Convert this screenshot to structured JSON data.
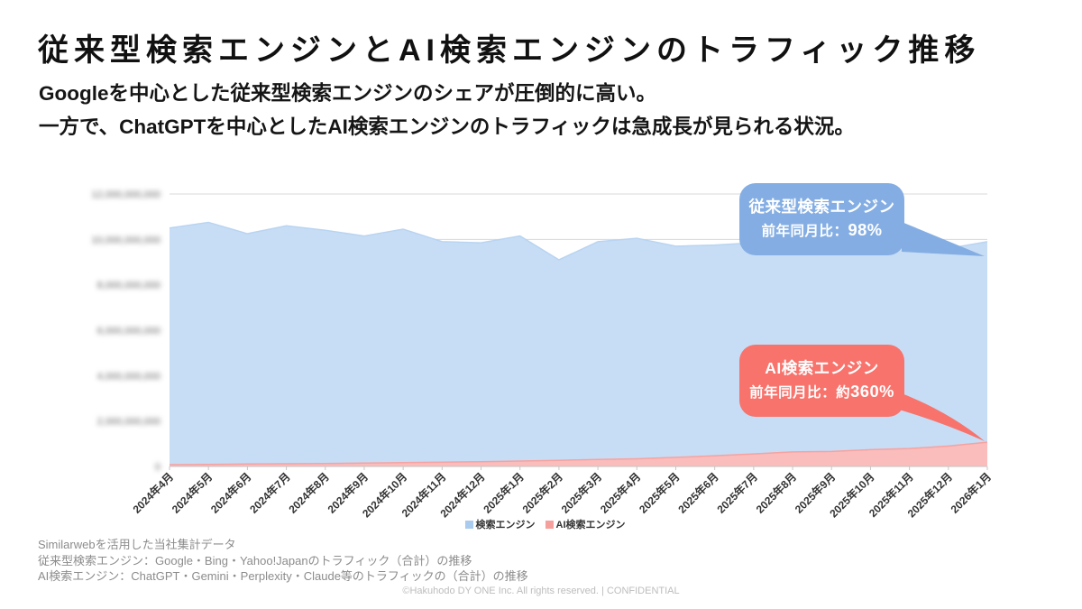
{
  "title": "従来型検索エンジンとAI検索エンジンのトラフィック推移",
  "subtitle": {
    "line1": "Googleを中心とした従来型検索エンジンのシェアが圧倒的に高い。",
    "line2": "一方で、ChatGPTを中心としたAI検索エンジンのトラフィックは急成長が見られる状況。"
  },
  "callouts": {
    "traditional": {
      "line1": "従来型検索エンジン",
      "line2": "前年同月比：98%",
      "color": "#84AEE3"
    },
    "ai": {
      "line1": "AI検索エンジン",
      "line2": "前年同月比：約360%",
      "color": "#F7736C"
    }
  },
  "chart_data": {
    "type": "area",
    "x": [
      "2024年4月",
      "2024年5月",
      "2024年6月",
      "2024年7月",
      "2024年8月",
      "2024年9月",
      "2024年10月",
      "2024年11月",
      "2024年12月",
      "2025年1月",
      "2025年2月",
      "2025年3月",
      "2025年4月",
      "2025年5月",
      "2025年6月",
      "2025年7月",
      "2025年8月",
      "2025年9月",
      "2025年10月",
      "2025年11月",
      "2025年12月",
      "2026年1月"
    ],
    "series": [
      {
        "name": "検索エンジン",
        "fill": "#C7DDF5",
        "line": "#B9D4F1",
        "values": [
          10500000000,
          10750000000,
          10250000000,
          10600000000,
          10400000000,
          10150000000,
          10450000000,
          9900000000,
          9850000000,
          10150000000,
          9100000000,
          9900000000,
          10050000000,
          9700000000,
          9750000000,
          9850000000,
          9750000000,
          9850000000,
          9750000000,
          9800000000,
          9600000000,
          9900000000
        ]
      },
      {
        "name": "AI検索エンジン",
        "fill": "#FBBCBC",
        "line": "#F5A3A1",
        "values": [
          80000000,
          90000000,
          110000000,
          120000000,
          130000000,
          150000000,
          170000000,
          190000000,
          210000000,
          240000000,
          270000000,
          310000000,
          340000000,
          400000000,
          470000000,
          550000000,
          640000000,
          660000000,
          740000000,
          790000000,
          900000000,
          1070000000
        ]
      }
    ],
    "y_ticks": [
      "0",
      "2,000,000,000",
      "4,000,000,000",
      "6,000,000,000",
      "8,000,000,000",
      "10,000,000,000",
      "12,000,000,000"
    ],
    "ylim": [
      0,
      12000000000
    ],
    "grid": true,
    "legend_position": "bottom"
  },
  "legend": [
    {
      "label": "検索エンジン",
      "color": "#A9CBEE"
    },
    {
      "label": "AI検索エンジン",
      "color": "#F5A09C"
    }
  ],
  "footer": {
    "line1": "Similarwebを活用した当社集計データ",
    "line2": "従来型検索エンジン：Google・Bing・Yahoo!Japanのトラフィック（合計）の推移",
    "line3": "AI検索エンジン：ChatGPT・Gemini・Perplexity・Claude等のトラフィックの（合計）の推移"
  },
  "copyright": "©Hakuhodo DY ONE Inc. All rights reserved. | CONFIDENTIAL"
}
